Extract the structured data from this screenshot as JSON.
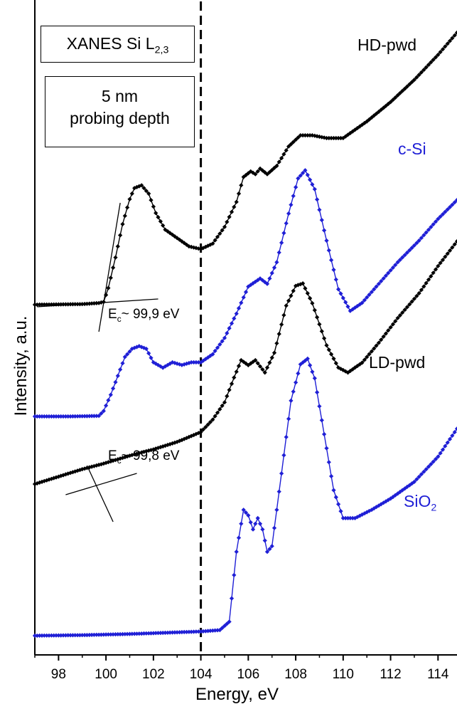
{
  "chart_data": {
    "type": "line",
    "xlabel": "Energy, eV",
    "ylabel": "Intensity, a.u.",
    "xlim": [
      97,
      114.8
    ],
    "x_ticks": [
      98,
      100,
      102,
      104,
      106,
      108,
      110,
      112,
      114
    ],
    "grid": false,
    "reference_line_x": 104,
    "info_boxes": {
      "technique": {
        "text": "XANES Si L",
        "sub": "2,3"
      },
      "depth": {
        "line1": "5 nm",
        "line2": "probing depth"
      }
    },
    "series": [
      {
        "name": "HD-pwd",
        "color": "#000000",
        "points": [
          [
            97,
            0.0
          ],
          [
            99,
            0.002
          ],
          [
            99.7,
            0.006
          ],
          [
            99.9,
            0.01
          ],
          [
            100.1,
            0.06
          ],
          [
            100.4,
            0.17
          ],
          [
            100.7,
            0.29
          ],
          [
            101.0,
            0.38
          ],
          [
            101.2,
            0.42
          ],
          [
            101.5,
            0.43
          ],
          [
            101.8,
            0.4
          ],
          [
            102.1,
            0.33
          ],
          [
            102.5,
            0.27
          ],
          [
            103.0,
            0.24
          ],
          [
            103.5,
            0.21
          ],
          [
            104.0,
            0.2
          ],
          [
            104.5,
            0.22
          ],
          [
            105.0,
            0.28
          ],
          [
            105.5,
            0.37
          ],
          [
            105.8,
            0.46
          ],
          [
            106.1,
            0.48
          ],
          [
            106.3,
            0.47
          ],
          [
            106.5,
            0.49
          ],
          [
            106.8,
            0.47
          ],
          [
            107.2,
            0.5
          ],
          [
            107.7,
            0.57
          ],
          [
            108.2,
            0.61
          ],
          [
            108.7,
            0.61
          ],
          [
            109.3,
            0.6
          ],
          [
            110.0,
            0.6
          ],
          [
            111.0,
            0.66
          ],
          [
            112.0,
            0.73
          ],
          [
            113.0,
            0.81
          ],
          [
            114.0,
            0.9
          ],
          [
            114.8,
            0.98
          ]
        ]
      },
      {
        "name": "c-Si",
        "color": "#1f1fd6",
        "points": [
          [
            97,
            0.0
          ],
          [
            98.5,
            0.0
          ],
          [
            99.7,
            0.002
          ],
          [
            99.9,
            0.02
          ],
          [
            100.2,
            0.08
          ],
          [
            100.5,
            0.15
          ],
          [
            100.8,
            0.22
          ],
          [
            101.1,
            0.25
          ],
          [
            101.4,
            0.26
          ],
          [
            101.7,
            0.25
          ],
          [
            102.0,
            0.2
          ],
          [
            102.4,
            0.18
          ],
          [
            102.8,
            0.2
          ],
          [
            103.2,
            0.19
          ],
          [
            103.6,
            0.2
          ],
          [
            104.0,
            0.2
          ],
          [
            104.5,
            0.23
          ],
          [
            105.0,
            0.29
          ],
          [
            105.5,
            0.38
          ],
          [
            106.0,
            0.48
          ],
          [
            106.5,
            0.51
          ],
          [
            106.8,
            0.49
          ],
          [
            107.2,
            0.57
          ],
          [
            107.7,
            0.75
          ],
          [
            108.1,
            0.88
          ],
          [
            108.4,
            0.91
          ],
          [
            108.8,
            0.84
          ],
          [
            109.3,
            0.65
          ],
          [
            109.8,
            0.47
          ],
          [
            110.3,
            0.39
          ],
          [
            110.8,
            0.42
          ],
          [
            111.5,
            0.49
          ],
          [
            112.3,
            0.57
          ],
          [
            113.2,
            0.65
          ],
          [
            114.0,
            0.73
          ],
          [
            114.8,
            0.8
          ]
        ]
      },
      {
        "name": "LD-pwd",
        "color": "#000000",
        "points": [
          [
            97,
            0.0
          ],
          [
            98.0,
            0.03
          ],
          [
            99.0,
            0.06
          ],
          [
            99.8,
            0.08
          ],
          [
            100.5,
            0.1
          ],
          [
            101.2,
            0.12
          ],
          [
            102.0,
            0.14
          ],
          [
            103.0,
            0.17
          ],
          [
            104.0,
            0.21
          ],
          [
            104.5,
            0.26
          ],
          [
            105.0,
            0.33
          ],
          [
            105.4,
            0.43
          ],
          [
            105.7,
            0.5
          ],
          [
            106.0,
            0.48
          ],
          [
            106.3,
            0.5
          ],
          [
            106.7,
            0.45
          ],
          [
            107.1,
            0.53
          ],
          [
            107.6,
            0.72
          ],
          [
            108.0,
            0.8
          ],
          [
            108.3,
            0.81
          ],
          [
            108.7,
            0.73
          ],
          [
            109.3,
            0.56
          ],
          [
            109.8,
            0.47
          ],
          [
            110.2,
            0.45
          ],
          [
            110.8,
            0.49
          ],
          [
            111.5,
            0.57
          ],
          [
            112.3,
            0.67
          ],
          [
            113.2,
            0.77
          ],
          [
            114.0,
            0.88
          ],
          [
            114.8,
            0.98
          ]
        ]
      },
      {
        "name": "SiO2",
        "color": "#1f1fd6",
        "points": [
          [
            97,
            0.0
          ],
          [
            99.0,
            0.002
          ],
          [
            101.0,
            0.006
          ],
          [
            103.0,
            0.012
          ],
          [
            104.0,
            0.015
          ],
          [
            104.8,
            0.02
          ],
          [
            105.2,
            0.05
          ],
          [
            105.5,
            0.3
          ],
          [
            105.8,
            0.45
          ],
          [
            106.0,
            0.43
          ],
          [
            106.2,
            0.38
          ],
          [
            106.4,
            0.42
          ],
          [
            106.6,
            0.38
          ],
          [
            106.8,
            0.3
          ],
          [
            107.0,
            0.32
          ],
          [
            107.4,
            0.58
          ],
          [
            107.8,
            0.84
          ],
          [
            108.2,
            0.97
          ],
          [
            108.5,
            0.99
          ],
          [
            108.8,
            0.92
          ],
          [
            109.2,
            0.72
          ],
          [
            109.6,
            0.52
          ],
          [
            110.0,
            0.42
          ],
          [
            110.5,
            0.42
          ],
          [
            111.2,
            0.45
          ],
          [
            112.0,
            0.49
          ],
          [
            113.0,
            0.55
          ],
          [
            114.0,
            0.64
          ],
          [
            114.8,
            0.74
          ]
        ]
      }
    ],
    "annotations": [
      {
        "text": "E",
        "sub": "c",
        "value": "~ 99,9 eV"
      },
      {
        "text": "E",
        "sub": "c",
        "value": "~ 99,8 eV"
      }
    ]
  }
}
